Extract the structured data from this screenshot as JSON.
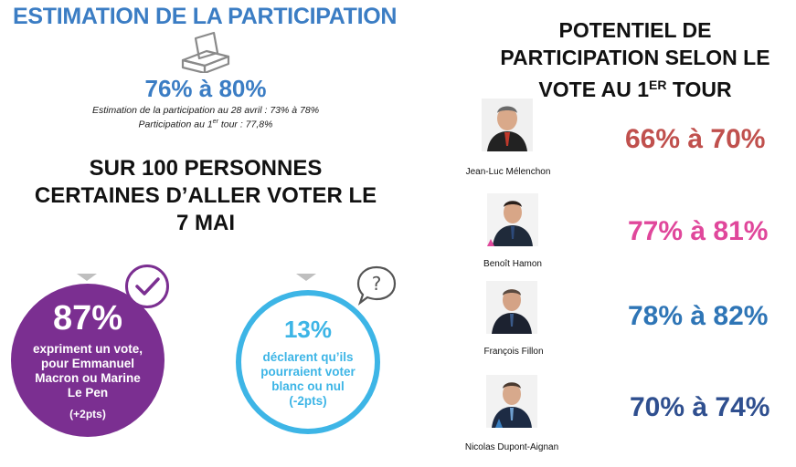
{
  "left": {
    "title": "ESTIMATION DE LA PARTICIPATION",
    "participation_range": "76% à 80%",
    "estimation_note": "Estimation de la participation au 28 avril : 73% à 78%",
    "first_round_prefix": "Participation au 1",
    "first_round_sup": "er",
    "first_round_suffix": " tour : 77,8%",
    "headline": "SUR 100 PERSONNES CERTAINES D’ALLER VOTER LE 7 MAI",
    "stat_vote": {
      "pct": "87%",
      "desc": "expriment un vote, pour Emmanuel Macron ou Marine Le Pen",
      "change": "(+2pts)",
      "color": "#7b2f91"
    },
    "stat_blank": {
      "pct": "13%",
      "desc": "déclarent qu’ils pourraient voter blanc ou nul (-2pts)",
      "color": "#3db5e6"
    }
  },
  "right": {
    "title_line1": "POTENTIEL DE",
    "title_line2": "PARTICIPATION SELON LE",
    "title_line3_prefix": "VOTE AU 1",
    "title_line3_sup": "ER",
    "title_line3_suffix": " TOUR",
    "candidates": [
      {
        "name": "Jean-Luc Mélenchon",
        "range": "66% à 70%",
        "color": "#c0504d"
      },
      {
        "name": "Benoît Hamon",
        "range": "77% à 81%",
        "color": "#e0479b"
      },
      {
        "name": "François Fillon",
        "range": "78% à 82%",
        "color": "#2e75b6"
      },
      {
        "name": "Nicolas Dupont-Aignan",
        "range": "70% à 74%",
        "color": "#2f4f8f"
      }
    ]
  },
  "icons": [
    "ballot-box-icon",
    "checkmark-icon",
    "question-bubble-icon",
    "chevron-down-icon"
  ]
}
